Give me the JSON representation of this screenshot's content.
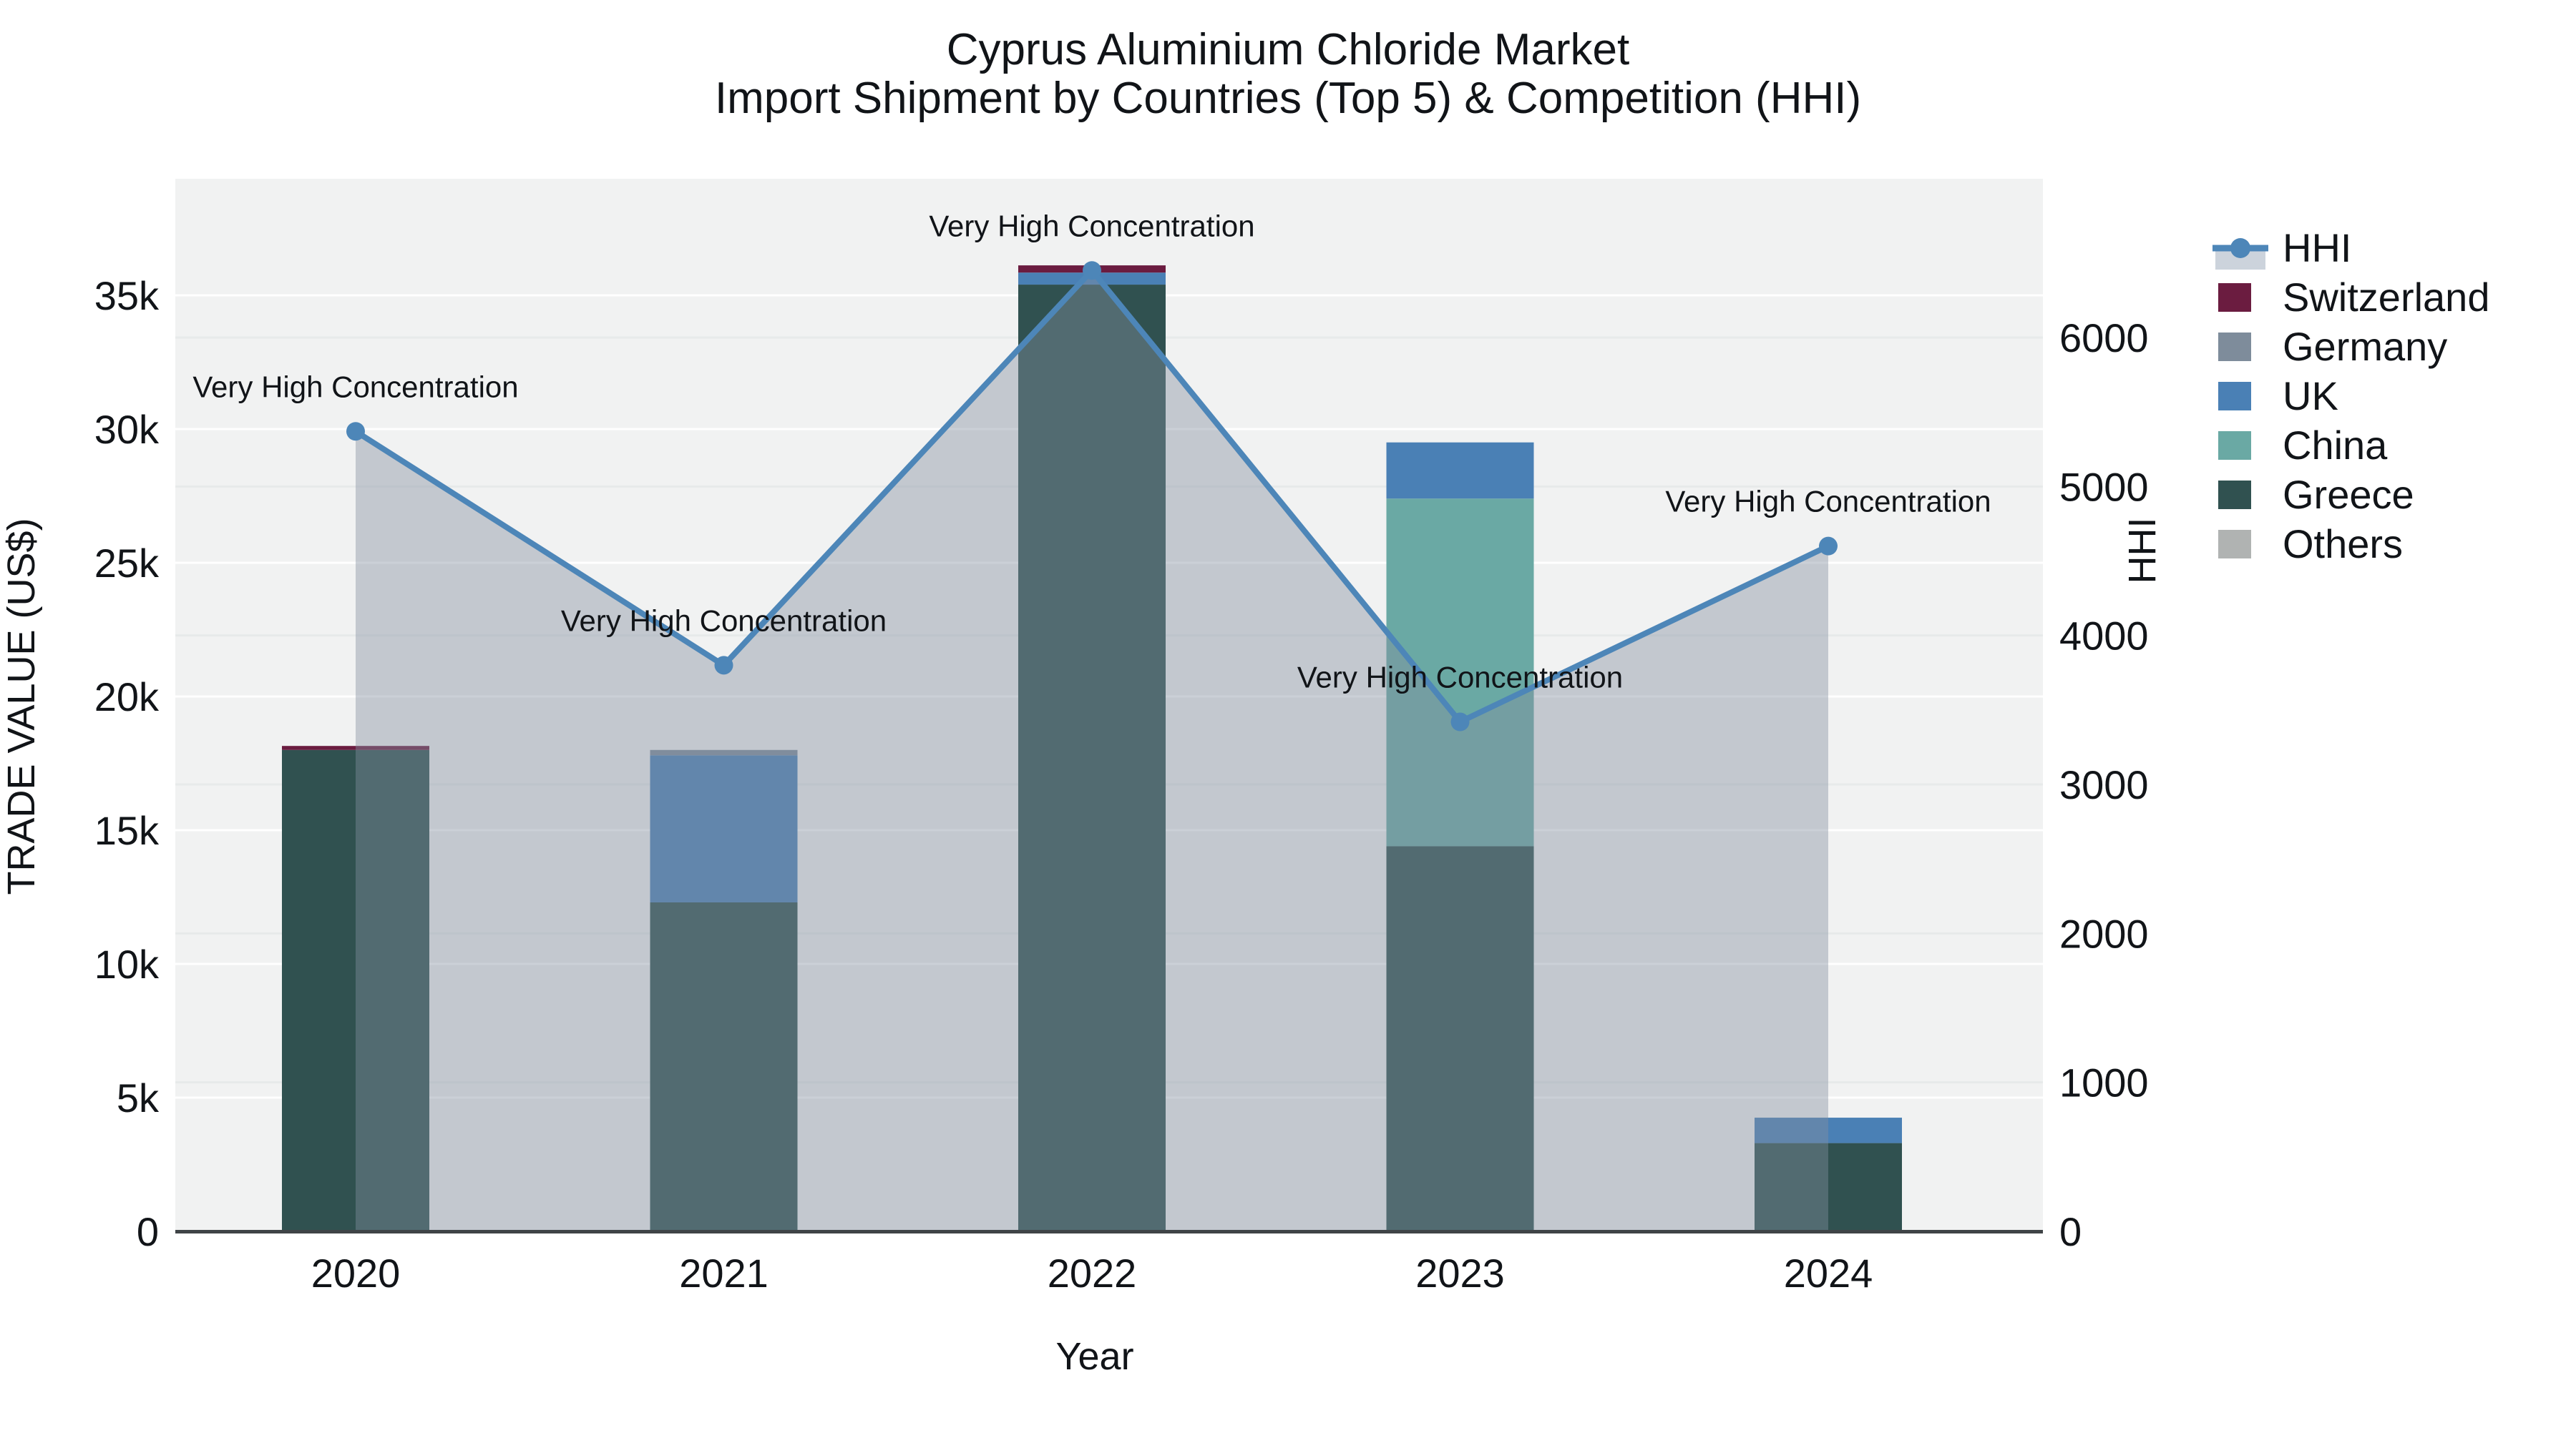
{
  "title": {
    "line1": "Cyprus Aluminium Chloride Market",
    "line2": "Import Shipment by Countries (Top 5) & Competition (HHI)"
  },
  "axes": {
    "x": {
      "title": "Year",
      "tick_labels": [
        "2020",
        "2021",
        "2022",
        "2023",
        "2024"
      ]
    },
    "y_left": {
      "title": "TRADE VALUE (US$)",
      "tick_labels": [
        "0",
        "5k",
        "10k",
        "15k",
        "20k",
        "25k",
        "30k",
        "35k"
      ],
      "tick_values": [
        0,
        5000,
        10000,
        15000,
        20000,
        25000,
        30000,
        35000
      ],
      "range": [
        0,
        39300
      ]
    },
    "y_right": {
      "title": "HHI",
      "tick_labels": [
        "0",
        "1000",
        "2000",
        "3000",
        "4000",
        "5000",
        "6000"
      ],
      "tick_values": [
        0,
        1000,
        2000,
        3000,
        4000,
        5000,
        6000
      ],
      "range": [
        0,
        7060
      ]
    }
  },
  "chart_data": {
    "type": "bar+line",
    "categories": [
      "2020",
      "2021",
      "2022",
      "2023",
      "2024"
    ],
    "bar_unit": "US$",
    "series": [
      {
        "name": "Greece",
        "values": [
          18000,
          12300,
          35400,
          14400,
          3300
        ]
      },
      {
        "name": "China",
        "values": [
          0,
          0,
          0,
          13000,
          0
        ]
      },
      {
        "name": "UK",
        "values": [
          0,
          5500,
          450,
          2100,
          950
        ]
      },
      {
        "name": "Germany",
        "values": [
          0,
          200,
          0,
          0,
          0
        ]
      },
      {
        "name": "Switzerland",
        "values": [
          150,
          0,
          270,
          0,
          0
        ]
      },
      {
        "name": "Others",
        "values": [
          0,
          0,
          0,
          0,
          0
        ]
      }
    ],
    "line_series": {
      "name": "HHI",
      "values": [
        5370,
        3800,
        6450,
        3420,
        4600
      ],
      "axis": "y_right",
      "area_fill": true
    },
    "annotations": [
      {
        "category": "2020",
        "text": "Very High Concentration"
      },
      {
        "category": "2021",
        "text": "Very High Concentration"
      },
      {
        "category": "2022",
        "text": "Very High Concentration"
      },
      {
        "category": "2023",
        "text": "Very High Concentration"
      },
      {
        "category": "2024",
        "text": "Very High Concentration"
      }
    ],
    "legend_position": "right",
    "grid": true
  },
  "legend": {
    "items": [
      {
        "label": "HHI",
        "type": "line",
        "color": "#4d86b8"
      },
      {
        "label": "Switzerland",
        "type": "swatch",
        "color": "#6b1c40"
      },
      {
        "label": "Germany",
        "type": "swatch",
        "color": "#7e8c9b"
      },
      {
        "label": "UK",
        "type": "swatch",
        "color": "#4a80b5"
      },
      {
        "label": "China",
        "type": "swatch",
        "color": "#6aa9a4"
      },
      {
        "label": "Greece",
        "type": "swatch",
        "color": "#305150"
      },
      {
        "label": "Others",
        "type": "swatch",
        "color": "#b0b3b2"
      }
    ]
  },
  "colors": {
    "plot_bg": "#f1f2f2",
    "grid_left": "#ffffff",
    "grid_right": "#e7eaea",
    "axis_line": "#3f4447",
    "hhi_line": "#4d86b8",
    "hhi_area": "rgba(130,142,160,0.42)",
    "hhi_legend_band": "#ccd3dc",
    "text": "#111418"
  }
}
